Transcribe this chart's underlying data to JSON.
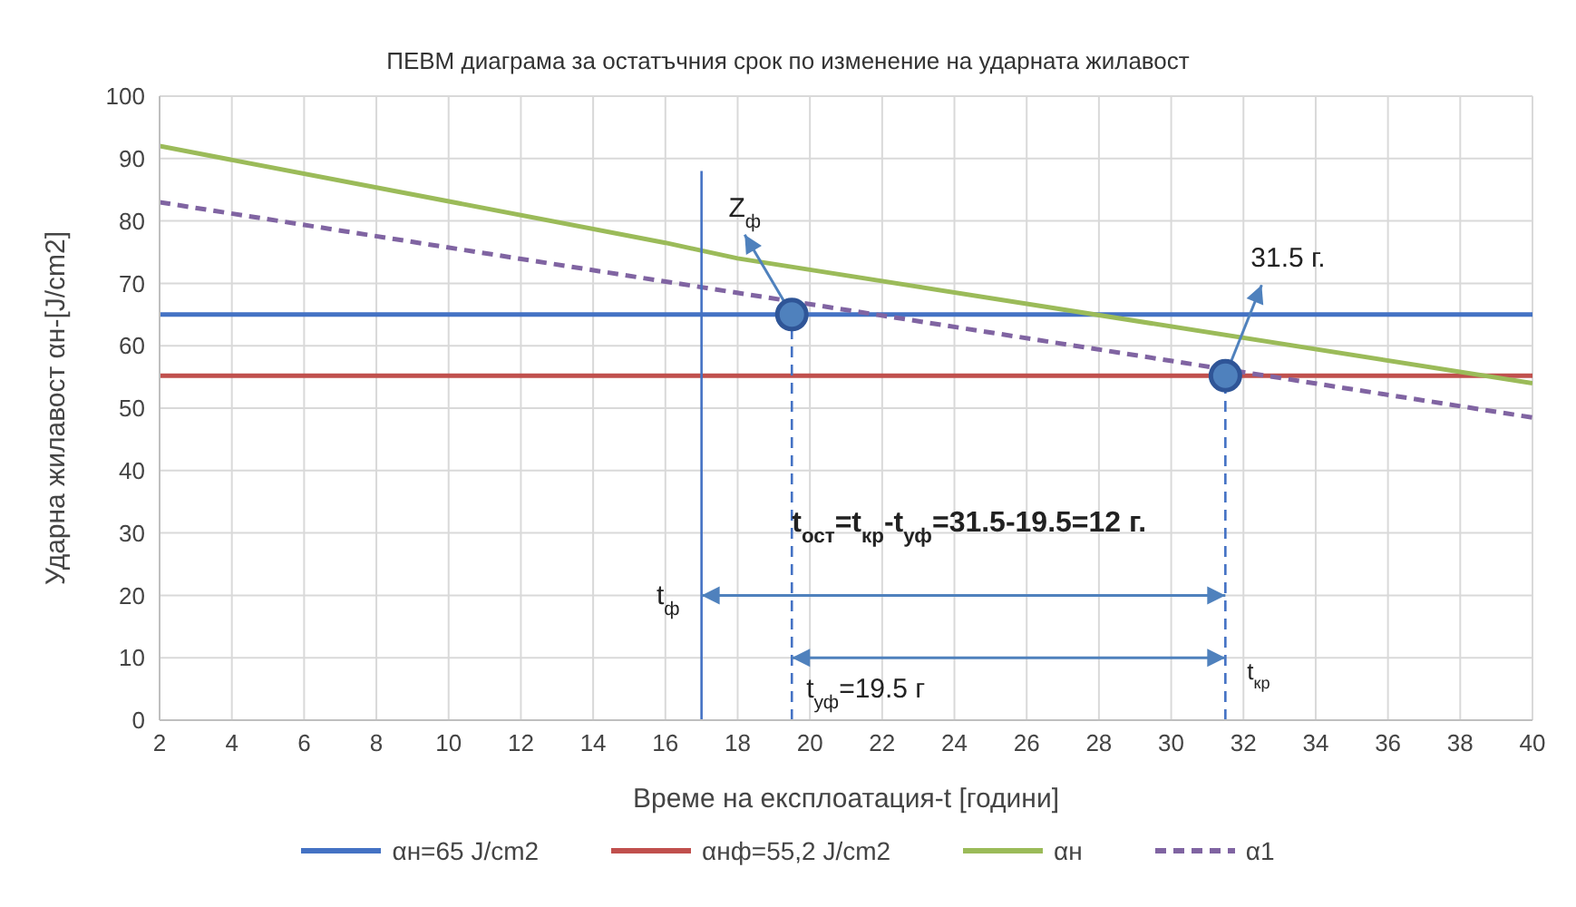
{
  "chart_data": {
    "type": "line",
    "title": "ПЕВМ диаграма за остатъчния срок по изменение на ударната жилавост",
    "xlabel": "Време на експлоатация-t [години]",
    "ylabel": "Ударна жилавост αн-[J/cm2]",
    "xlim": [
      2,
      40
    ],
    "xticks": [
      2,
      4,
      6,
      8,
      10,
      12,
      14,
      16,
      18,
      20,
      22,
      24,
      26,
      28,
      30,
      32,
      34,
      36,
      38,
      40
    ],
    "ylim": [
      0,
      100
    ],
    "yticks": [
      0,
      10,
      20,
      30,
      40,
      50,
      60,
      70,
      80,
      90,
      100
    ],
    "grid": true,
    "legend": "bottom",
    "marker": "none",
    "line_style": "solid",
    "series": [
      {
        "name": "αн=65 J/cm2",
        "color": "#4472c4",
        "x": [
          2,
          40
        ],
        "values": [
          65,
          65
        ]
      },
      {
        "name": "αнф=55,2 J/cm2",
        "color": "#c0504d",
        "x": [
          2,
          40
        ],
        "values": [
          55.2,
          55.2
        ]
      },
      {
        "name": "αн",
        "color": "#9bbb59",
        "x": [
          2,
          16,
          18,
          40
        ],
        "values": [
          92,
          76.5,
          74,
          54
        ]
      },
      {
        "name": "α1",
        "color": "#8064a2",
        "x": [
          2,
          40
        ],
        "values": [
          83,
          48.5
        ],
        "line_style": "dashed"
      },
      {
        "color": "#4472c4",
        "x": [
          17,
          17
        ],
        "values": [
          0,
          88
        ]
      },
      {
        "color": "#4472c4",
        "x": [
          19.5,
          19.5
        ],
        "values": [
          0,
          65
        ],
        "line_style": "dashed"
      },
      {
        "color": "#4472c4",
        "x": [
          31.5,
          31.5
        ],
        "values": [
          0,
          55.2
        ],
        "line_style": "dashed"
      },
      {
        "type": "scatter",
        "color": "#4f81bd",
        "x": [
          19.5,
          31.5
        ],
        "values": [
          65,
          55.2
        ],
        "marker": "circle"
      }
    ],
    "annotations": [
      {
        "text": "Z$_{ф}$",
        "x": 19.5,
        "y": 65
      },
      {
        "text": "31.5 г.",
        "x": 31.5,
        "y": 55.2
      },
      {
        "text": "t$_{ост}$=t$_{кр}$-t$_{уф}$=31.5-19.5=12 г.",
        "x": 19.5,
        "y": 32
      },
      {
        "text": "t$_{ф}$",
        "x": 17,
        "y": 20
      },
      {
        "text": "t$_{уф}$=19.5 г",
        "x": 19.5,
        "y": 10
      },
      {
        "text": "t$_{кр}$",
        "x": 31.5,
        "y": 10
      }
    ]
  }
}
